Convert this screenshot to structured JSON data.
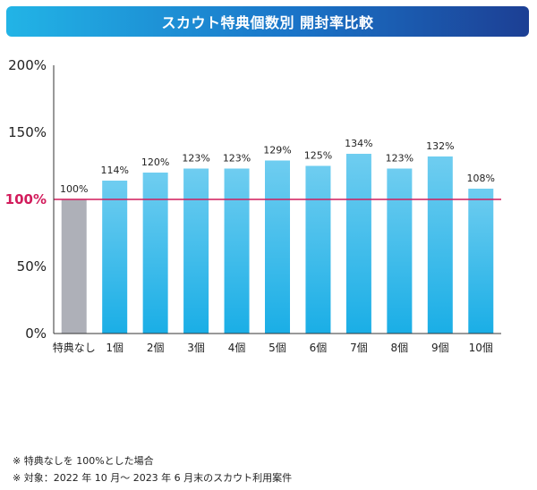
{
  "header": {
    "title": "スカウト特典個数別 開封率比較"
  },
  "chart_data": {
    "type": "bar",
    "categories": [
      "特典なし",
      "1個",
      "2個",
      "3個",
      "4個",
      "5個",
      "6個",
      "7個",
      "8個",
      "9個",
      "10個"
    ],
    "values": [
      100,
      114,
      120,
      123,
      123,
      129,
      125,
      134,
      123,
      132,
      108
    ],
    "data_labels": [
      "100%",
      "114%",
      "120%",
      "123%",
      "123%",
      "129%",
      "125%",
      "134%",
      "123%",
      "132%",
      "108%"
    ],
    "ylim": [
      0,
      200
    ],
    "yticks": [
      {
        "value": 0,
        "label": "0%"
      },
      {
        "value": 50,
        "label": "50%"
      },
      {
        "value": 100,
        "label": "100%"
      },
      {
        "value": 150,
        "label": "150%"
      },
      {
        "value": 200,
        "label": "200%"
      }
    ],
    "reference_line": {
      "value": 100,
      "color": "#d21c5c"
    },
    "colors": {
      "baseline_bar": "#aeb0b8",
      "bar_top": "#6fcdf0",
      "bar_bottom": "#1aaee6",
      "axis": "#333333"
    },
    "grid": false
  },
  "notes": [
    "※ 特典なしを 100%とした場合",
    "※ 対象：2022 年 10 月～ 2023 年 6 月末のスカウト利用案件"
  ]
}
